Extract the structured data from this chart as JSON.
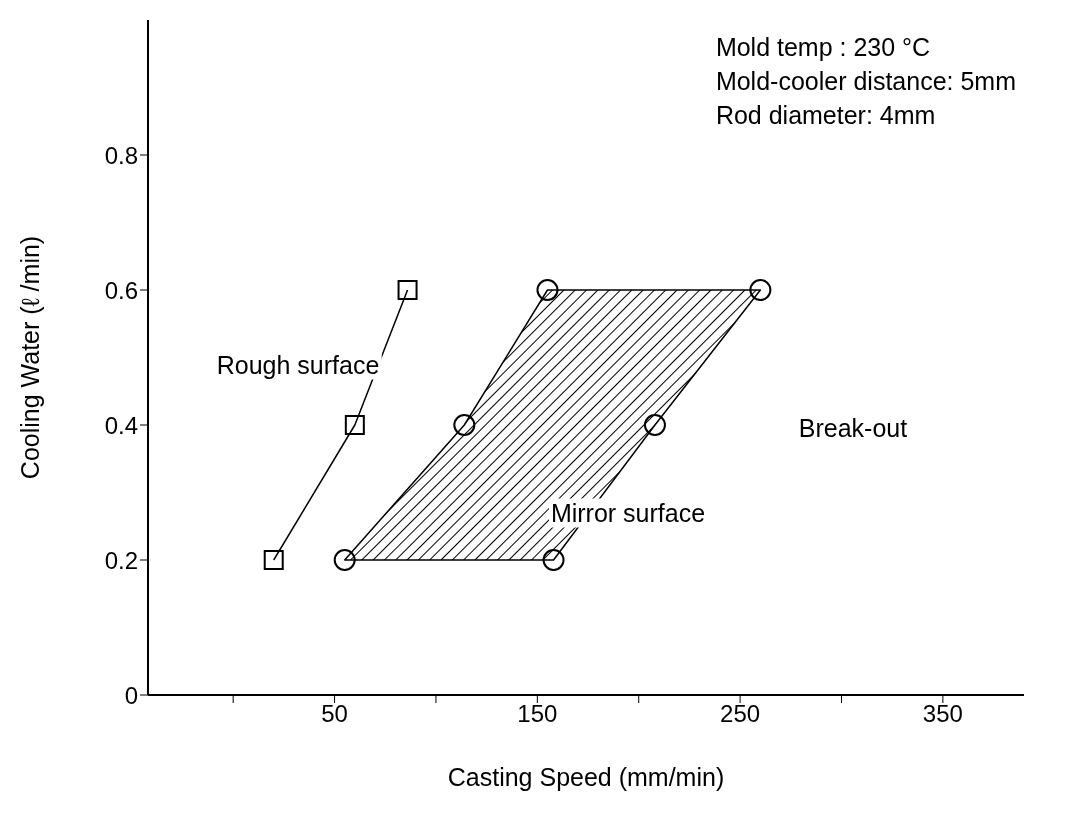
{
  "chart_data": {
    "type": "line",
    "xlabel": "Casting Speed (mm/min)",
    "ylabel": "Cooling Water (ℓ /min)",
    "xlim": [
      -42,
      390
    ],
    "xticks": [
      {
        "value": 0,
        "label": null
      },
      50,
      {
        "value": 100,
        "label": null
      },
      150,
      {
        "value": 200,
        "label": null
      },
      250,
      {
        "value": 300,
        "label": null
      },
      350
    ],
    "ylim": [
      0,
      1
    ],
    "yticks": [
      0,
      0.2,
      0.4,
      0.6,
      0.8
    ],
    "grid": false,
    "series": [
      {
        "marker": "square",
        "color": "#000000",
        "x": [
          20,
          60,
          86
        ],
        "values": [
          0.2,
          0.4,
          0.6
        ]
      },
      {
        "type": "area",
        "marker": "circle",
        "color": "#000000",
        "x": [
          55,
          114,
          155,
          260,
          208,
          158
        ],
        "values": [
          0.2,
          0.4,
          0.6,
          0.6,
          0.4,
          0.2
        ]
      }
    ],
    "annotations": [
      "Mold temp : 230  °C",
      "Mold-cooler distance: 5mm",
      "Rod diameter: 4mm",
      "Rough surface",
      "Mirror surface",
      "Break-out"
    ]
  }
}
